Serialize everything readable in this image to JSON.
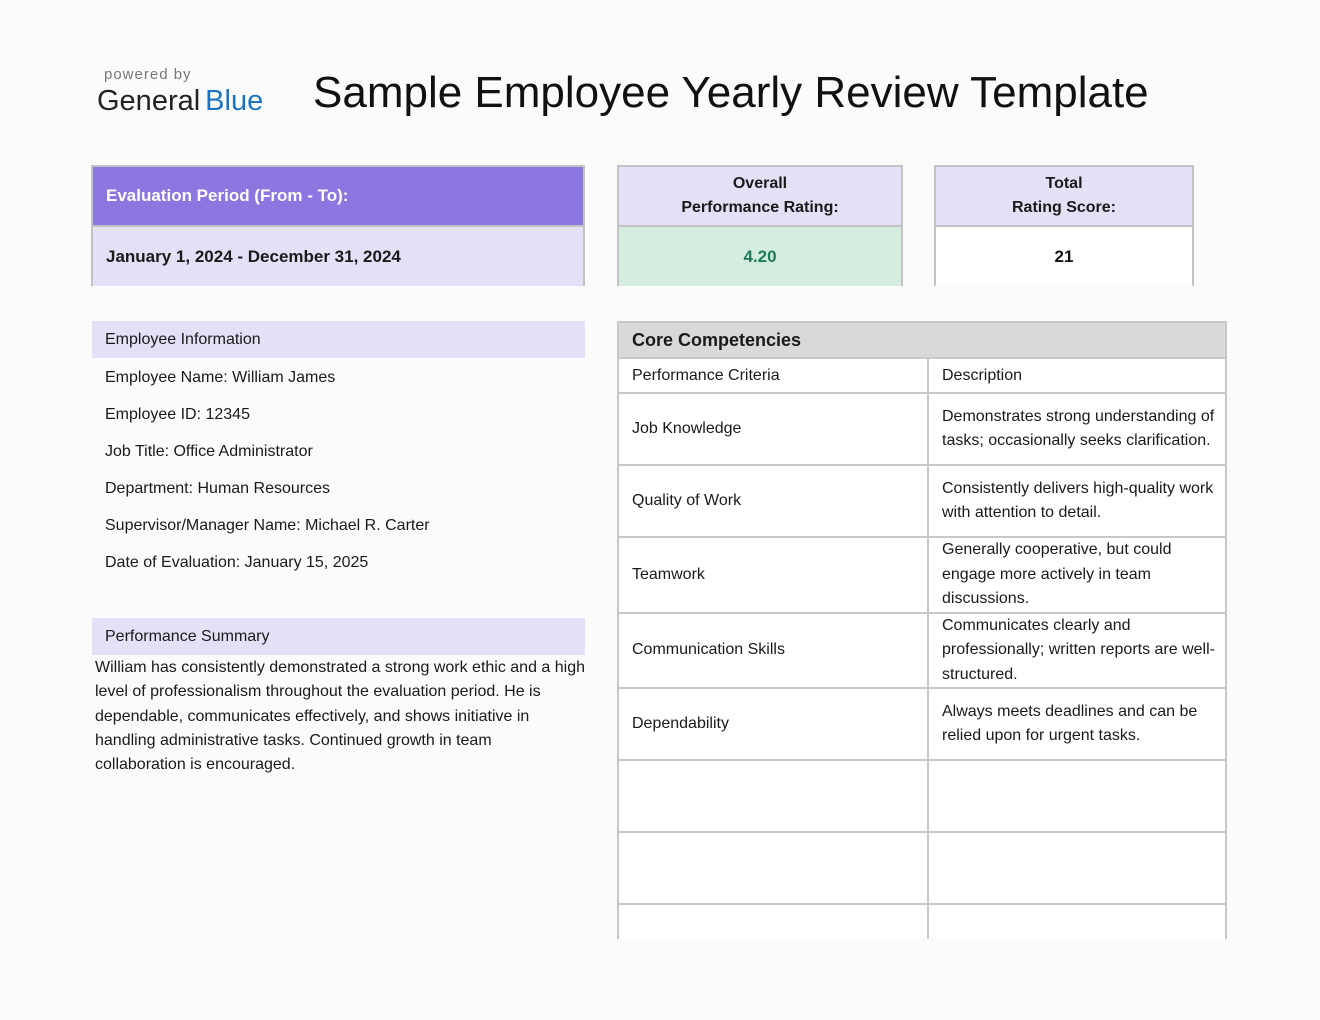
{
  "logo": {
    "powered_by": "powered by",
    "brand_general": "General",
    "brand_blue": "Blue"
  },
  "title": "Sample Employee Yearly Review Template",
  "evaluation_period": {
    "label": "Evaluation Period (From - To):",
    "value": "January 1, 2024 - December 31, 2024"
  },
  "overall_rating": {
    "label_line1": "Overall",
    "label_line2": "Performance Rating:",
    "value": "4.20"
  },
  "total_score": {
    "label_line1": "Total",
    "label_line2": "Rating Score:",
    "value": "21"
  },
  "employee_info": {
    "heading": "Employee Information",
    "lines": [
      "Employee Name: William James",
      "Employee ID: 12345",
      "Job Title: Office Administrator",
      "Department: Human Resources",
      "Supervisor/Manager Name: Michael R. Carter",
      "Date of Evaluation: January 15, 2025"
    ]
  },
  "performance_summary": {
    "heading": "Performance Summary",
    "text": "William has consistently demonstrated a strong work ethic and a high level of professionalism throughout the evaluation period. He is dependable, communicates effectively, and shows initiative in handling administrative tasks. Continued growth in team collaboration is encouraged."
  },
  "core_competencies": {
    "title": "Core Competencies",
    "col_criteria": "Performance Criteria",
    "col_description": "Description",
    "rows": [
      {
        "criteria": "Job Knowledge",
        "description": "Demonstrates strong understanding of tasks; occasionally seeks clarification."
      },
      {
        "criteria": "Quality of Work",
        "description": "Consistently delivers high-quality work with attention to detail."
      },
      {
        "criteria": "Teamwork",
        "description": "Generally cooperative, but could engage more actively in team discussions."
      },
      {
        "criteria": "Communication Skills",
        "description": "Communicates clearly and professionally; written reports are well-structured."
      },
      {
        "criteria": "Dependability",
        "description": "Always meets deadlines and can be relied upon for urgent tasks."
      },
      {
        "criteria": "",
        "description": ""
      },
      {
        "criteria": "",
        "description": ""
      },
      {
        "criteria": "",
        "description": ""
      }
    ]
  }
}
